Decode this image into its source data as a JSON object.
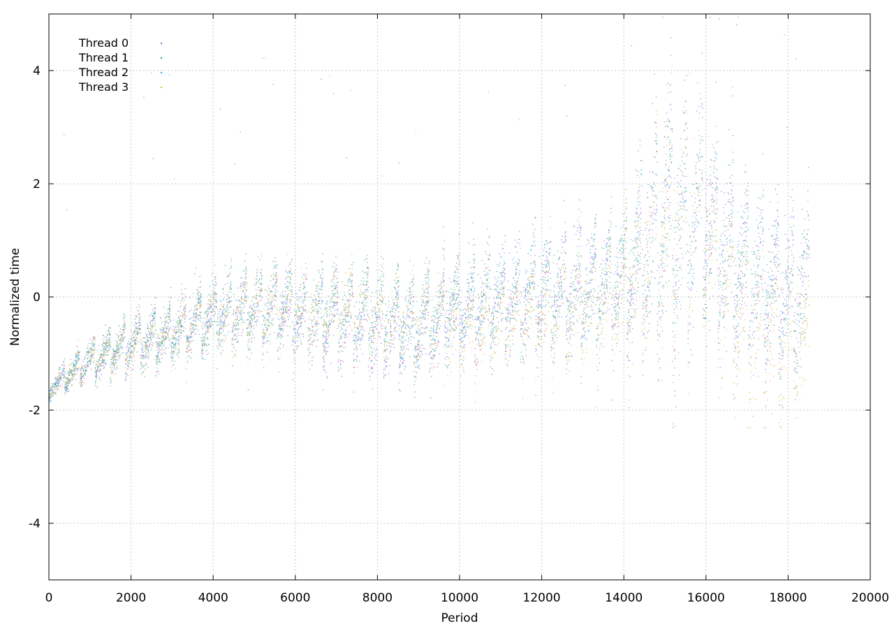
{
  "chart_data": {
    "type": "scatter",
    "xlabel": "Period",
    "ylabel": "Normalized time",
    "xlim": [
      0,
      20000
    ],
    "ylim": [
      -5,
      5
    ],
    "xticks": [
      0,
      2000,
      4000,
      6000,
      8000,
      10000,
      12000,
      14000,
      16000,
      18000,
      20000
    ],
    "yticks": [
      -4,
      -2,
      0,
      2,
      4
    ],
    "grid": true,
    "legend_position": "top-left",
    "marker_size_note": "tiny dots",
    "series": [
      {
        "name": "Thread 0",
        "color": "#9b59d6"
      },
      {
        "name": "Thread 1",
        "color": "#2a9e78"
      },
      {
        "name": "Thread 2",
        "color": "#3aa7e0"
      },
      {
        "name": "Thread 3",
        "color": "#e6b040"
      }
    ],
    "points_per_series_approx": 18500,
    "trend_profile": [
      {
        "x": 0,
        "y": -1.6
      },
      {
        "x": 500,
        "y": -1.35
      },
      {
        "x": 1000,
        "y": -1.1
      },
      {
        "x": 2000,
        "y": -0.85
      },
      {
        "x": 3000,
        "y": -0.6
      },
      {
        "x": 4000,
        "y": -0.35
      },
      {
        "x": 5000,
        "y": -0.2
      },
      {
        "x": 6000,
        "y": -0.2
      },
      {
        "x": 7000,
        "y": -0.25
      },
      {
        "x": 8000,
        "y": -0.35
      },
      {
        "x": 9000,
        "y": -0.45
      },
      {
        "x": 10000,
        "y": -0.2
      },
      {
        "x": 11000,
        "y": -0.05
      },
      {
        "x": 12000,
        "y": 0.05
      },
      {
        "x": 13000,
        "y": 0.1
      },
      {
        "x": 14000,
        "y": 0.3
      },
      {
        "x": 15000,
        "y": 1.2
      },
      {
        "x": 16000,
        "y": 1.3
      },
      {
        "x": 17000,
        "y": 0.3
      },
      {
        "x": 18000,
        "y": 0.0
      },
      {
        "x": 18500,
        "y": 0.0
      }
    ],
    "spread_profile": [
      {
        "x": 0,
        "y": 0.2
      },
      {
        "x": 2000,
        "y": 0.5
      },
      {
        "x": 6000,
        "y": 0.8
      },
      {
        "x": 10000,
        "y": 0.9
      },
      {
        "x": 14000,
        "y": 1.2
      },
      {
        "x": 15200,
        "y": 2.6
      },
      {
        "x": 16000,
        "y": 1.8
      },
      {
        "x": 18500,
        "y": 1.4
      }
    ]
  }
}
